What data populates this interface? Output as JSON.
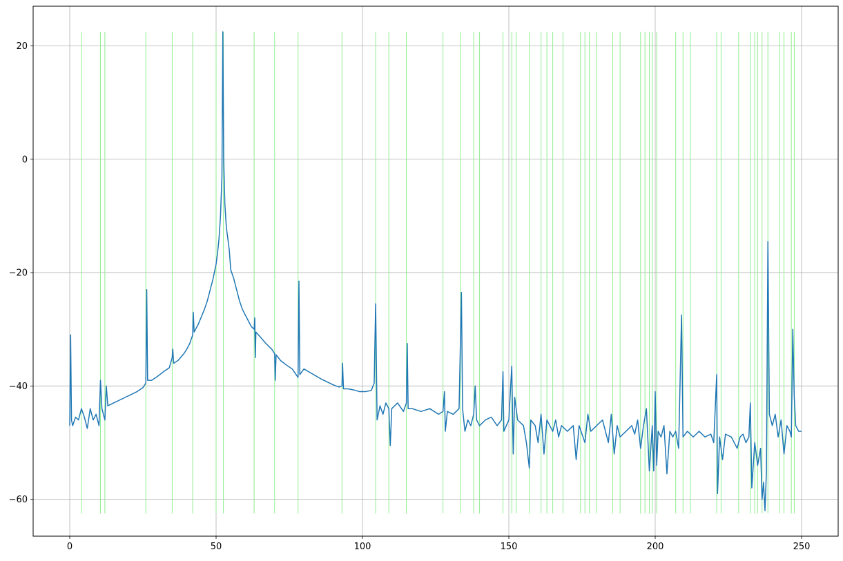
{
  "chart_data": {
    "type": "line",
    "title": "",
    "xlabel": "",
    "ylabel": "",
    "xlim": [
      -12.5,
      262.5
    ],
    "ylim": [
      -66.5,
      27.0
    ],
    "grid": true,
    "x_ticks": [
      0,
      50,
      100,
      150,
      200,
      250
    ],
    "y_ticks": [
      -60,
      -40,
      -20,
      0,
      20
    ],
    "x_tick_labels": [
      "0",
      "50",
      "100",
      "150",
      "200",
      "250"
    ],
    "y_tick_labels": [
      "−60",
      "−40",
      "−20",
      "0",
      "20"
    ],
    "series": [
      {
        "color": "#1f77b4",
        "points": [
          [
            0,
            -47
          ],
          [
            0.3,
            -31
          ],
          [
            0.6,
            -46
          ],
          [
            1,
            -47
          ],
          [
            2,
            -45.5
          ],
          [
            3,
            -46
          ],
          [
            4,
            -44
          ],
          [
            5,
            -45.5
          ],
          [
            6,
            -47.5
          ],
          [
            7,
            -44
          ],
          [
            8,
            -46
          ],
          [
            9,
            -45
          ],
          [
            10,
            -47
          ],
          [
            10.5,
            -39
          ],
          [
            11,
            -44
          ],
          [
            12,
            -46
          ],
          [
            12.5,
            -40
          ],
          [
            13,
            -43.5
          ],
          [
            15,
            -43
          ],
          [
            17,
            -42.5
          ],
          [
            19,
            -42
          ],
          [
            21,
            -41.5
          ],
          [
            23,
            -41
          ],
          [
            25,
            -40.3
          ],
          [
            26,
            -39.5
          ],
          [
            26.3,
            -23
          ],
          [
            26.6,
            -39
          ],
          [
            28,
            -39
          ],
          [
            30,
            -38.3
          ],
          [
            32,
            -37.5
          ],
          [
            34,
            -36.8
          ],
          [
            35,
            -35
          ],
          [
            35.2,
            -33.5
          ],
          [
            35.5,
            -36
          ],
          [
            37,
            -35.5
          ],
          [
            39,
            -34.3
          ],
          [
            40,
            -33.5
          ],
          [
            41,
            -32.5
          ],
          [
            42,
            -31
          ],
          [
            42.2,
            -27
          ],
          [
            42.5,
            -30.5
          ],
          [
            44,
            -29
          ],
          [
            46,
            -26.5
          ],
          [
            47,
            -25
          ],
          [
            48,
            -23
          ],
          [
            49,
            -21
          ],
          [
            50,
            -18.5
          ],
          [
            50.5,
            -16.5
          ],
          [
            51,
            -14
          ],
          [
            51.5,
            -10
          ],
          [
            52,
            -3
          ],
          [
            52.3,
            22.5
          ],
          [
            52.6,
            0
          ],
          [
            53,
            -8
          ],
          [
            53.5,
            -12
          ],
          [
            54,
            -14
          ],
          [
            54.5,
            -16
          ],
          [
            55,
            -19.5
          ],
          [
            56,
            -21
          ],
          [
            57,
            -23
          ],
          [
            58,
            -25
          ],
          [
            59,
            -26.5
          ],
          [
            60,
            -27.5
          ],
          [
            61,
            -28.5
          ],
          [
            62,
            -29.5
          ],
          [
            63,
            -30
          ],
          [
            63.2,
            -28
          ],
          [
            63.4,
            -35
          ],
          [
            63.6,
            -30.5
          ],
          [
            65,
            -31.3
          ],
          [
            67,
            -32.5
          ],
          [
            69,
            -33.5
          ],
          [
            70,
            -34.3
          ],
          [
            70.2,
            -39
          ],
          [
            70.5,
            -34.5
          ],
          [
            72,
            -35.5
          ],
          [
            74,
            -36.3
          ],
          [
            76,
            -37
          ],
          [
            78,
            -38.5
          ],
          [
            78.3,
            -21.5
          ],
          [
            78.6,
            -38
          ],
          [
            80,
            -37
          ],
          [
            82,
            -37.6
          ],
          [
            84,
            -38.2
          ],
          [
            86,
            -38.8
          ],
          [
            88,
            -39.3
          ],
          [
            90,
            -39.8
          ],
          [
            92,
            -40.2
          ],
          [
            93,
            -40
          ],
          [
            93.2,
            -36
          ],
          [
            93.5,
            -40.5
          ],
          [
            95,
            -40.5
          ],
          [
            97,
            -40.7
          ],
          [
            99,
            -41
          ],
          [
            101,
            -41
          ],
          [
            103,
            -40.8
          ],
          [
            104,
            -39.5
          ],
          [
            104.5,
            -25.5
          ],
          [
            105,
            -46
          ],
          [
            106,
            -43.5
          ],
          [
            107,
            -45
          ],
          [
            108,
            -43
          ],
          [
            109,
            -44
          ],
          [
            109.5,
            -50.5
          ],
          [
            110,
            -44
          ],
          [
            112,
            -43
          ],
          [
            114,
            -44.5
          ],
          [
            115,
            -43
          ],
          [
            115.3,
            -32.5
          ],
          [
            115.6,
            -44
          ],
          [
            117,
            -44
          ],
          [
            120,
            -44.5
          ],
          [
            123,
            -44
          ],
          [
            126,
            -45
          ],
          [
            127.5,
            -44.5
          ],
          [
            128,
            -41
          ],
          [
            128.3,
            -48
          ],
          [
            129,
            -44.5
          ],
          [
            131,
            -45
          ],
          [
            133,
            -44
          ],
          [
            133.8,
            -23.5
          ],
          [
            134.2,
            -44
          ],
          [
            135,
            -48
          ],
          [
            136,
            -46
          ],
          [
            137,
            -47
          ],
          [
            138,
            -45
          ],
          [
            138.5,
            -40
          ],
          [
            139,
            -46
          ],
          [
            140,
            -47
          ],
          [
            142,
            -46
          ],
          [
            144,
            -45.5
          ],
          [
            146,
            -47
          ],
          [
            147.5,
            -46
          ],
          [
            148,
            -37.5
          ],
          [
            148.3,
            -48
          ],
          [
            150,
            -46
          ],
          [
            151,
            -36.5
          ],
          [
            151.5,
            -52
          ],
          [
            152,
            -42
          ],
          [
            153,
            -46
          ],
          [
            155,
            -47
          ],
          [
            156,
            -50
          ],
          [
            157,
            -54.5
          ],
          [
            157.5,
            -46
          ],
          [
            159,
            -47
          ],
          [
            160,
            -50
          ],
          [
            161,
            -45
          ],
          [
            162,
            -52
          ],
          [
            163,
            -46
          ],
          [
            164,
            -47
          ],
          [
            165,
            -48
          ],
          [
            166,
            -46
          ],
          [
            167,
            -49
          ],
          [
            168,
            -47
          ],
          [
            170,
            -48
          ],
          [
            172,
            -47
          ],
          [
            173,
            -53
          ],
          [
            174,
            -47
          ],
          [
            176,
            -50
          ],
          [
            177,
            -45
          ],
          [
            178,
            -48
          ],
          [
            180,
            -47
          ],
          [
            182,
            -46
          ],
          [
            184,
            -50
          ],
          [
            185,
            -45
          ],
          [
            186,
            -52
          ],
          [
            187,
            -47
          ],
          [
            188,
            -49
          ],
          [
            190,
            -48
          ],
          [
            192,
            -47
          ],
          [
            193,
            -48.5
          ],
          [
            194,
            -46
          ],
          [
            195,
            -51
          ],
          [
            196,
            -47
          ],
          [
            197,
            -44
          ],
          [
            198,
            -55
          ],
          [
            199,
            -47
          ],
          [
            199.5,
            -55
          ],
          [
            200,
            -41
          ],
          [
            200.5,
            -54
          ],
          [
            201,
            -48
          ],
          [
            202,
            -49
          ],
          [
            203,
            -47
          ],
          [
            204,
            -55.5
          ],
          [
            205,
            -48
          ],
          [
            206,
            -49
          ],
          [
            207,
            -48
          ],
          [
            208,
            -51
          ],
          [
            209,
            -27.5
          ],
          [
            209.5,
            -49
          ],
          [
            211,
            -48
          ],
          [
            213,
            -49
          ],
          [
            215,
            -48
          ],
          [
            217,
            -49
          ],
          [
            219,
            -48.5
          ],
          [
            220,
            -50
          ],
          [
            221,
            -38
          ],
          [
            221.3,
            -59
          ],
          [
            222,
            -49
          ],
          [
            223,
            -53
          ],
          [
            224,
            -48.5
          ],
          [
            226,
            -49
          ],
          [
            228,
            -51
          ],
          [
            229,
            -49
          ],
          [
            230,
            -48.5
          ],
          [
            231,
            -50
          ],
          [
            232,
            -49
          ],
          [
            232.5,
            -43
          ],
          [
            233,
            -58
          ],
          [
            234,
            -50
          ],
          [
            235,
            -54
          ],
          [
            236,
            -51
          ],
          [
            236.5,
            -60
          ],
          [
            237,
            -57
          ],
          [
            237.5,
            -62
          ],
          [
            238,
            -55
          ],
          [
            238.5,
            -14.5
          ],
          [
            239,
            -45
          ],
          [
            240,
            -47
          ],
          [
            241,
            -45
          ],
          [
            242,
            -49
          ],
          [
            243,
            -46
          ],
          [
            244,
            -52
          ],
          [
            245,
            -47
          ],
          [
            246,
            -48
          ],
          [
            246.5,
            -49
          ],
          [
            247,
            -30
          ],
          [
            247.5,
            -42
          ],
          [
            248,
            -47
          ],
          [
            249,
            -48
          ],
          [
            250,
            -48
          ]
        ]
      }
    ],
    "vlines": {
      "color": "#90ee90",
      "x": [
        4,
        10.5,
        12,
        26,
        35,
        42,
        50,
        52.5,
        63,
        70,
        78,
        93,
        104.5,
        109,
        115,
        127.5,
        133.5,
        138,
        140,
        148,
        151,
        152.5,
        157,
        161,
        163,
        165,
        168.5,
        174.5,
        176,
        177.5,
        180,
        185.5,
        188,
        195,
        196.5,
        198,
        199,
        200.5,
        207,
        209.5,
        212,
        221,
        222.5,
        228.5,
        232.5,
        234,
        235,
        236.5,
        238.5,
        242.5,
        244,
        246.5,
        247.5
      ],
      "ymin": -62.5,
      "ymax": 22.5
    }
  }
}
